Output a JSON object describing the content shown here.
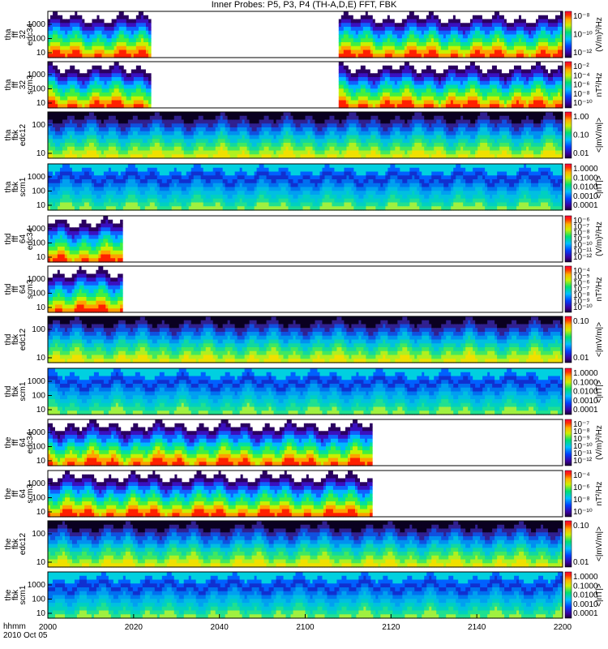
{
  "title": "Inner Probes: P5, P3, P4 (TH-A,D,E) FFT, FBK",
  "footer": {
    "line1": "hhmm",
    "line2": "2010 Oct 05"
  },
  "x_ticks": [
    "2000",
    "2020",
    "2040",
    "2100",
    "2120",
    "2140",
    "2200"
  ],
  "chart_data": [
    {
      "type": "heatmap",
      "ylabel": [
        "tha",
        "fff",
        "32",
        "edc34"
      ],
      "yticks": [
        "1000",
        "100",
        "10"
      ],
      "cbar": [
        "10⁻⁸",
        "10⁻¹⁰",
        "10⁻¹²"
      ],
      "cbar_label": "(V/m)²/Hz",
      "coverage": [
        [
          0.0,
          0.2
        ],
        [
          0.565,
          1.0
        ]
      ]
    },
    {
      "type": "heatmap",
      "ylabel": [
        "tha",
        "fff",
        "32",
        "scm3"
      ],
      "yticks": [
        "1000",
        "100",
        "10"
      ],
      "cbar": [
        "10⁻²",
        "10⁻⁴",
        "10⁻⁶",
        "10⁻⁸",
        "10⁻¹⁰"
      ],
      "cbar_label": "nT²/Hz",
      "coverage": [
        [
          0.0,
          0.2
        ],
        [
          0.565,
          1.0
        ]
      ]
    },
    {
      "type": "heatmap",
      "ylabel": [
        "tha",
        "fbk",
        "edc12"
      ],
      "yticks": [
        "100",
        "10"
      ],
      "cbar": [
        "1.00",
        "0.10",
        "0.01"
      ],
      "cbar_label": "<|mV/m|>",
      "coverage": [
        [
          0.0,
          1.0
        ]
      ]
    },
    {
      "type": "heatmap",
      "ylabel": [
        "tha",
        "fbk",
        "scm1"
      ],
      "yticks": [
        "1000",
        "100",
        "10"
      ],
      "cbar": [
        "1.0000",
        "0.1000",
        "0.0100",
        "0.0010",
        "0.0001"
      ],
      "cbar_label": "<|nT|>",
      "coverage": [
        [
          0.0,
          1.0
        ]
      ]
    },
    {
      "type": "heatmap",
      "ylabel": [
        "thd",
        "fff",
        "64",
        "edc34"
      ],
      "yticks": [
        "1000",
        "100",
        "10"
      ],
      "cbar": [
        "10⁻⁶",
        "10⁻⁷",
        "10⁻⁸",
        "10⁻⁹",
        "10⁻¹⁰",
        "10⁻¹¹",
        "10⁻¹²"
      ],
      "cbar_label": "(V/m)²/Hz",
      "coverage": [
        [
          0.0,
          0.145
        ]
      ]
    },
    {
      "type": "heatmap",
      "ylabel": [
        "thd",
        "fff",
        "64",
        "scm3"
      ],
      "yticks": [
        "1000",
        "100",
        "10"
      ],
      "cbar": [
        "10⁻⁴",
        "10⁻⁵",
        "10⁻⁶",
        "10⁻⁷",
        "10⁻⁸",
        "10⁻⁹",
        "10⁻¹⁰"
      ],
      "cbar_label": "nT²/Hz",
      "coverage": [
        [
          0.0,
          0.145
        ]
      ]
    },
    {
      "type": "heatmap",
      "ylabel": [
        "thd",
        "fbk",
        "edc12"
      ],
      "yticks": [
        "100",
        "10"
      ],
      "cbar": [
        "0.10",
        "0.01"
      ],
      "cbar_label": "<|mV/m|>",
      "coverage": [
        [
          0.0,
          1.0
        ]
      ]
    },
    {
      "type": "heatmap",
      "ylabel": [
        "thd",
        "fbk",
        "scm1"
      ],
      "yticks": [
        "1000",
        "100",
        "10"
      ],
      "cbar": [
        "1.0000",
        "0.1000",
        "0.0100",
        "0.0010",
        "0.0001"
      ],
      "cbar_label": "<|nT|>",
      "coverage": [
        [
          0.0,
          1.0
        ]
      ]
    },
    {
      "type": "heatmap",
      "ylabel": [
        "the",
        "fff",
        "64",
        "edc34"
      ],
      "yticks": [
        "1000",
        "100",
        "10"
      ],
      "cbar": [
        "10⁻⁷",
        "10⁻⁸",
        "10⁻⁹",
        "10⁻¹⁰",
        "10⁻¹¹",
        "10⁻¹²"
      ],
      "cbar_label": "(V/m)²/Hz",
      "coverage": [
        [
          0.0,
          0.63
        ]
      ]
    },
    {
      "type": "heatmap",
      "ylabel": [
        "the",
        "fff",
        "64",
        "scm3"
      ],
      "yticks": [
        "1000",
        "100",
        "10"
      ],
      "cbar": [
        "10⁻⁴",
        "10⁻⁶",
        "10⁻⁸",
        "10⁻¹⁰"
      ],
      "cbar_label": "nT²/Hz",
      "coverage": [
        [
          0.0,
          0.63
        ]
      ]
    },
    {
      "type": "heatmap",
      "ylabel": [
        "the",
        "fbk",
        "edc12"
      ],
      "yticks": [
        "100",
        "10"
      ],
      "cbar": [
        "0.10",
        "0.01"
      ],
      "cbar_label": "<|mV/m|>",
      "coverage": [
        [
          0.0,
          1.0
        ]
      ]
    },
    {
      "type": "heatmap",
      "ylabel": [
        "the",
        "fbk",
        "scm1"
      ],
      "yticks": [
        "1000",
        "100",
        "10"
      ],
      "cbar": [
        "1.0000",
        "0.1000",
        "0.0100",
        "0.0010",
        "0.0001"
      ],
      "cbar_label": "<|nT|>",
      "coverage": [
        [
          0.0,
          1.0
        ]
      ]
    }
  ]
}
